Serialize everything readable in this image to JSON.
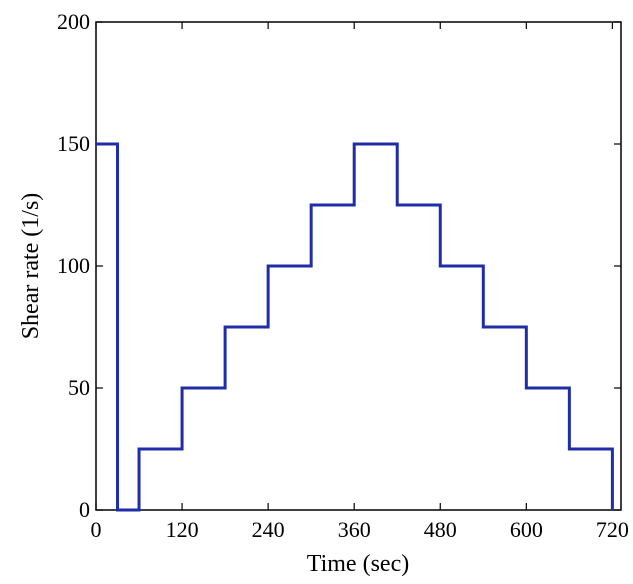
{
  "chart_data": {
    "type": "line",
    "title": "",
    "xlabel": "Time (sec)",
    "ylabel": "Shear rate (1/s)",
    "xlim": [
      0,
      732
    ],
    "ylim": [
      0,
      200
    ],
    "xticks": [
      0,
      120,
      240,
      360,
      480,
      600,
      720
    ],
    "yticks": [
      0,
      50,
      100,
      150,
      200
    ],
    "x_tick_labels": [
      "0",
      "120",
      "240",
      "360",
      "480",
      "600",
      "720"
    ],
    "y_tick_labels": [
      "0",
      "50",
      "100",
      "150",
      "200"
    ],
    "grid": false,
    "legend": false,
    "line_color": "#1f2ea8",
    "series": [
      {
        "x": [
          0,
          30,
          30,
          60,
          60,
          120,
          120,
          180,
          180,
          240,
          240,
          300,
          300,
          360,
          360,
          420,
          420,
          480,
          480,
          540,
          540,
          600,
          600,
          660,
          660,
          720,
          720
        ],
        "y": [
          150,
          150,
          0,
          0,
          25,
          25,
          50,
          50,
          75,
          75,
          100,
          100,
          125,
          125,
          150,
          150,
          125,
          125,
          100,
          100,
          75,
          75,
          50,
          50,
          25,
          25,
          0
        ]
      }
    ]
  }
}
